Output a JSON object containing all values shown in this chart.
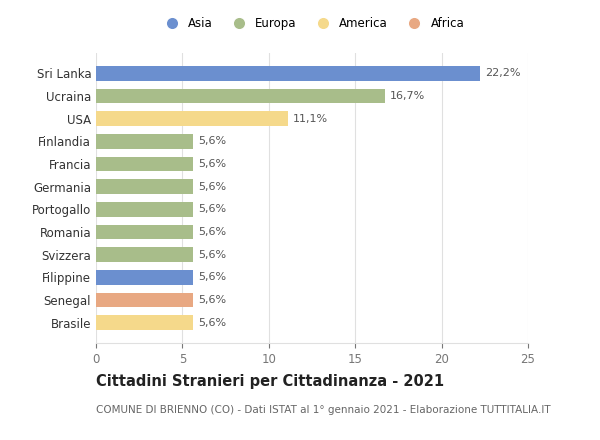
{
  "categories": [
    "Brasile",
    "Senegal",
    "Filippine",
    "Svizzera",
    "Romania",
    "Portogallo",
    "Germania",
    "Francia",
    "Finlandia",
    "USA",
    "Ucraina",
    "Sri Lanka"
  ],
  "values": [
    5.6,
    5.6,
    5.6,
    5.6,
    5.6,
    5.6,
    5.6,
    5.6,
    5.6,
    11.1,
    16.7,
    22.2
  ],
  "labels": [
    "5,6%",
    "5,6%",
    "5,6%",
    "5,6%",
    "5,6%",
    "5,6%",
    "5,6%",
    "5,6%",
    "5,6%",
    "11,1%",
    "16,7%",
    "22,2%"
  ],
  "colors": [
    "#f5d98b",
    "#e8a882",
    "#6b8fcf",
    "#a8bd8a",
    "#a8bd8a",
    "#a8bd8a",
    "#a8bd8a",
    "#a8bd8a",
    "#a8bd8a",
    "#f5d98b",
    "#a8bd8a",
    "#6b8fcf"
  ],
  "legend": [
    {
      "label": "Asia",
      "color": "#6b8fcf"
    },
    {
      "label": "Europa",
      "color": "#a8bd8a"
    },
    {
      "label": "America",
      "color": "#f5d98b"
    },
    {
      "label": "Africa",
      "color": "#e8a882"
    }
  ],
  "xlim": [
    0,
    25
  ],
  "xticks": [
    0,
    5,
    10,
    15,
    20,
    25
  ],
  "title": "Cittadini Stranieri per Cittadinanza - 2021",
  "subtitle": "COMUNE DI BRIENNO (CO) - Dati ISTAT al 1° gennaio 2021 - Elaborazione TUTTITALIA.IT",
  "title_fontsize": 10.5,
  "subtitle_fontsize": 7.5,
  "background_color": "#ffffff",
  "grid_color": "#e0e0e0"
}
